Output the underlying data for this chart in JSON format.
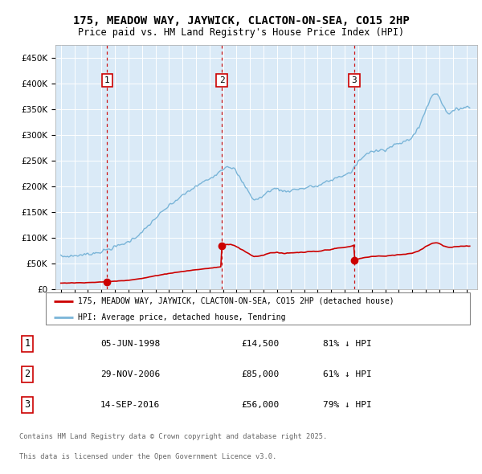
{
  "title": "175, MEADOW WAY, JAYWICK, CLACTON-ON-SEA, CO15 2HP",
  "subtitle": "Price paid vs. HM Land Registry's House Price Index (HPI)",
  "bg_color": "#daeaf7",
  "hpi_color": "#7ab5d8",
  "price_color": "#cc0000",
  "vline_color": "#cc0000",
  "sale_dates_num": [
    1998.43,
    2006.91,
    2016.71
  ],
  "sale_prices": [
    14500,
    85000,
    56000
  ],
  "sale_labels": [
    "1",
    "2",
    "3"
  ],
  "legend_property_label": "175, MEADOW WAY, JAYWICK, CLACTON-ON-SEA, CO15 2HP (detached house)",
  "legend_hpi_label": "HPI: Average price, detached house, Tendring",
  "annotations": [
    {
      "label": "1",
      "date": "05-JUN-1998",
      "price": "£14,500",
      "pct": "81% ↓ HPI"
    },
    {
      "label": "2",
      "date": "29-NOV-2006",
      "price": "£85,000",
      "pct": "61% ↓ HPI"
    },
    {
      "label": "3",
      "date": "14-SEP-2016",
      "price": "£56,000",
      "pct": "79% ↓ HPI"
    }
  ],
  "footer_line1": "Contains HM Land Registry data © Crown copyright and database right 2025.",
  "footer_line2": "This data is licensed under the Open Government Licence v3.0.",
  "ylim": [
    0,
    475000
  ],
  "xlim": [
    1994.6,
    2025.8
  ]
}
